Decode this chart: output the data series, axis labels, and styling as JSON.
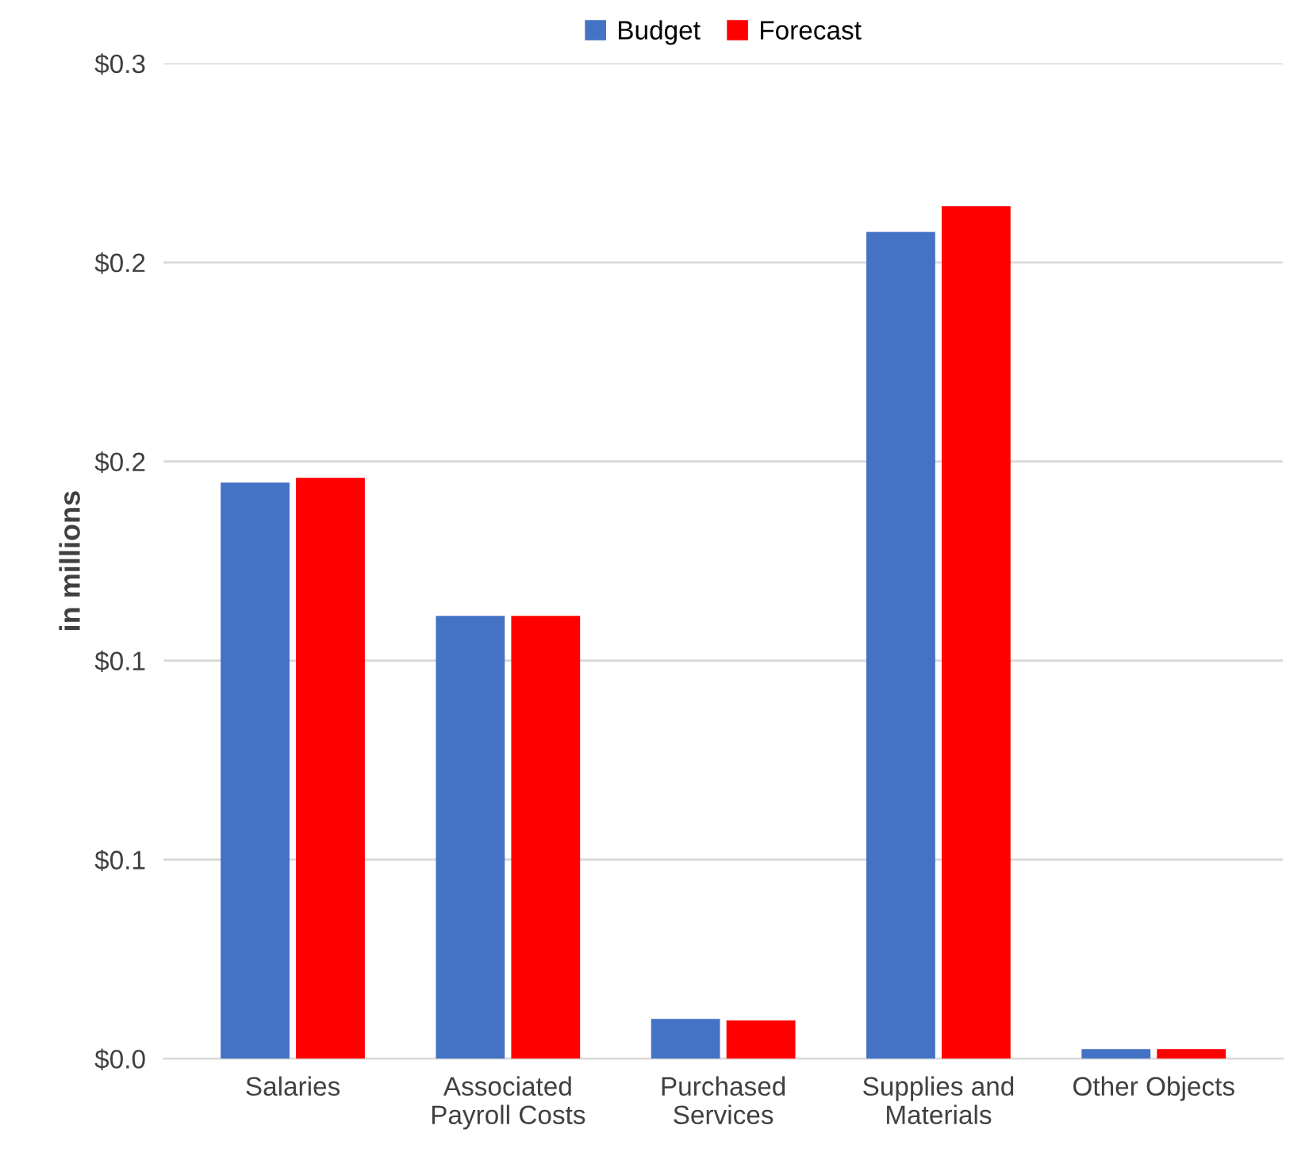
{
  "chart_data": {
    "type": "bar",
    "ylabel": "in millions",
    "categories": [
      "Salaries",
      "Associated\nPayroll Costs",
      "Purchased\nServices",
      "Supplies and\nMaterials",
      "Other Objects"
    ],
    "series": [
      {
        "name": "Budget",
        "color": "#4472c4",
        "values": [
          0.1447,
          0.1112,
          0.01,
          0.2077,
          0.0024
        ]
      },
      {
        "name": "Forecast",
        "color": "#ff0000",
        "values": [
          0.1459,
          0.1112,
          0.0096,
          0.2141,
          0.0024
        ]
      }
    ],
    "ylim": [
      0,
      0.25
    ],
    "yticks": [
      {
        "value": 0,
        "label": "$0.0"
      },
      {
        "value": 0.05,
        "label": "$0.1"
      },
      {
        "value": 0.1,
        "label": "$0.1"
      },
      {
        "value": 0.15,
        "label": "$0.2"
      },
      {
        "value": 0.2,
        "label": "$0.2"
      },
      {
        "value": 0.25,
        "label": "$0.3"
      }
    ],
    "grid": "y",
    "legend": "top"
  }
}
